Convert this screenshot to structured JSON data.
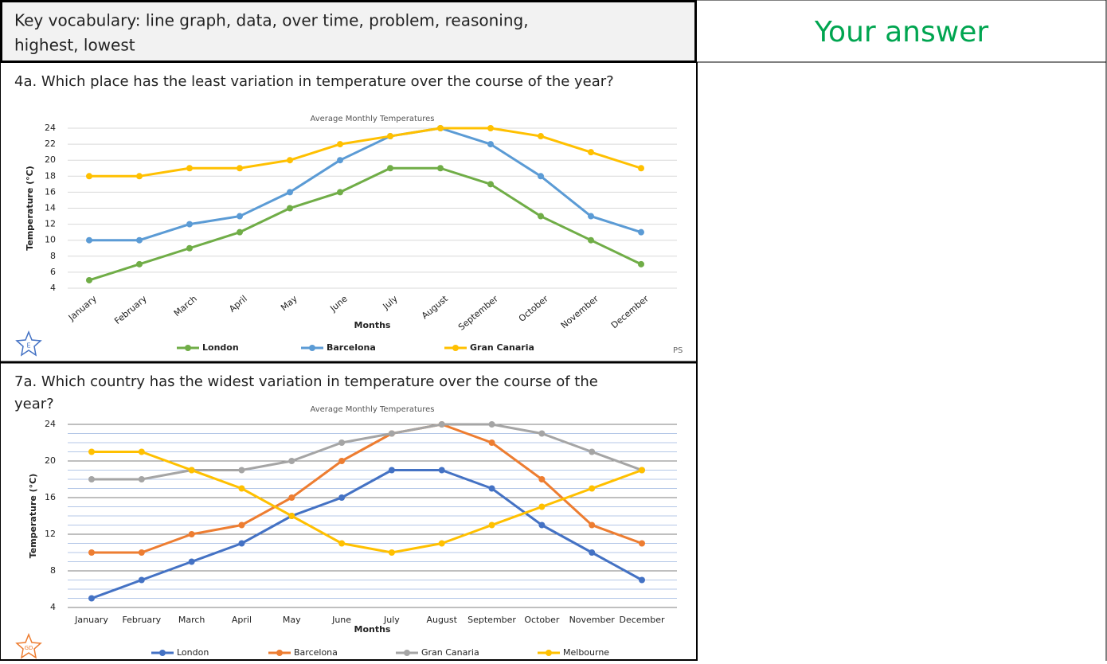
{
  "header": {
    "vocabulary_line1": "Key vocabulary: line graph, data, over time, problem, reasoning,",
    "vocabulary_line2": "highest, lowest",
    "answer_title": "Your answer"
  },
  "questions": [
    "4a. Which place has the least variation in temperature over the course of the year?",
    "7a. Which country has the widest variation in temperature over the course of the",
    "year?"
  ],
  "badges": [
    "E",
    "PS",
    "GD"
  ],
  "chart_data": [
    {
      "type": "line",
      "title": "Average Monthly Temperatures",
      "x_label": "Months",
      "y_label": "Temperature (°C)",
      "categories": [
        "January",
        "February",
        "March",
        "April",
        "May",
        "June",
        "July",
        "August",
        "September",
        "October",
        "November",
        "December"
      ],
      "series": [
        {
          "name": "London",
          "color": "#70ad47",
          "values": [
            5,
            7,
            9,
            11,
            14,
            16,
            19,
            19,
            17,
            13,
            10,
            7
          ]
        },
        {
          "name": "Barcelona",
          "color": "#5b9bd5",
          "values": [
            10,
            10,
            12,
            13,
            16,
            20,
            23,
            24,
            22,
            18,
            13,
            11
          ]
        },
        {
          "name": "Gran Canaria",
          "color": "#ffc000",
          "values": [
            18,
            18,
            19,
            19,
            20,
            22,
            23,
            24,
            24,
            23,
            21,
            19
          ]
        }
      ],
      "ylim": [
        4,
        24
      ],
      "yticks": [
        4,
        6,
        8,
        10,
        12,
        14,
        16,
        18,
        20,
        22,
        24
      ],
      "grid": true,
      "grid_color": "#d9d9d9",
      "legend": "bottom"
    },
    {
      "type": "line",
      "title": "Average Monthly Temperatures",
      "x_label": "Months",
      "y_label": "Temperature (°C)",
      "categories": [
        "January",
        "February",
        "March",
        "April",
        "May",
        "June",
        "July",
        "August",
        "September",
        "October",
        "November",
        "December"
      ],
      "series": [
        {
          "name": "London",
          "color": "#4472c4",
          "values": [
            5,
            7,
            9,
            11,
            14,
            16,
            19,
            19,
            17,
            13,
            10,
            7
          ]
        },
        {
          "name": "Barcelona",
          "color": "#ed7d31",
          "values": [
            10,
            10,
            12,
            13,
            16,
            20,
            23,
            24,
            22,
            18,
            13,
            11
          ]
        },
        {
          "name": "Gran Canaria",
          "color": "#a5a5a5",
          "values": [
            18,
            18,
            19,
            19,
            20,
            22,
            23,
            24,
            24,
            23,
            21,
            19
          ]
        },
        {
          "name": "Melbourne",
          "color": "#ffc000",
          "values": [
            21,
            21,
            19,
            17,
            14,
            11,
            10,
            11,
            13,
            15,
            17,
            19
          ]
        }
      ],
      "ylim": [
        4,
        24
      ],
      "yticks": [
        4,
        8,
        12,
        16,
        20,
        24
      ],
      "grid": true,
      "grid_color": "#7f7f7f",
      "minor_grid": true,
      "legend": "bottom"
    }
  ]
}
